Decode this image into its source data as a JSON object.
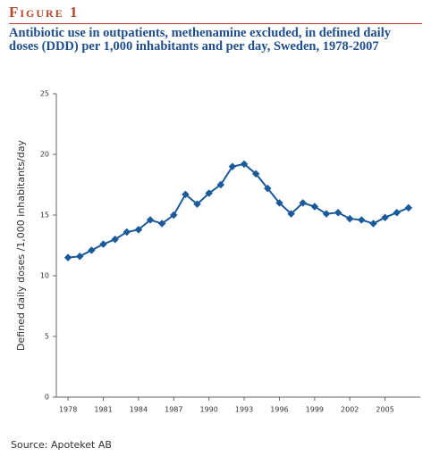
{
  "figure_label": "Figure 1",
  "chart_data": {
    "type": "line",
    "title": "Antibiotic use in outpatients, methenamine excluded, in defined daily doses (DDD) per 1,000 inhabitants and per day, Sweden, 1978-2007",
    "y_label": "Defined daily doses /1,000 inhabitants/day",
    "source": "Source: Apoteket AB",
    "x": [
      1978,
      1979,
      1980,
      1981,
      1982,
      1983,
      1984,
      1985,
      1986,
      1987,
      1988,
      1989,
      1990,
      1991,
      1992,
      1993,
      1994,
      1995,
      1996,
      1997,
      1998,
      1999,
      2000,
      2001,
      2002,
      2003,
      2004,
      2005,
      2006,
      2007
    ],
    "series": [
      {
        "name": "Antibiotic use",
        "color": "#1a5a9a",
        "values": [
          11.5,
          11.6,
          12.1,
          12.6,
          13.0,
          13.6,
          13.8,
          14.6,
          14.3,
          15.0,
          16.7,
          15.9,
          16.8,
          17.5,
          19.0,
          19.2,
          18.4,
          17.2,
          16.0,
          15.1,
          16.0,
          15.7,
          15.1,
          15.2,
          14.7,
          14.6,
          14.3,
          14.8,
          15.2,
          15.6
        ]
      }
    ],
    "xlim": [
      1977,
      2008
    ],
    "xticks": [
      1978,
      1981,
      1984,
      1987,
      1990,
      1993,
      1996,
      1999,
      2002,
      2005
    ],
    "ylim": [
      0,
      25
    ],
    "yticks": [
      0,
      5,
      10,
      15,
      20,
      25
    ],
    "grid": false
  }
}
